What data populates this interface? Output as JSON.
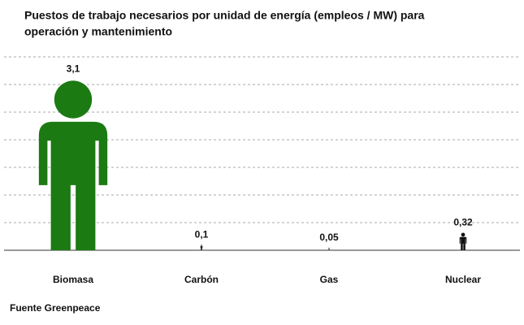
{
  "chart_data": {
    "type": "pictograph",
    "title": [
      "Puestos de trabajo necesarios por unidad de energía (empleos / MW) para",
      "operación y mantenimiento"
    ],
    "categories": [
      "Biomasa",
      "Carbón",
      "Gas",
      "Nuclear"
    ],
    "values": [
      3.1,
      0.1,
      0.05,
      0.32
    ],
    "value_labels": [
      "3,1",
      "0,1",
      "0,05",
      "0,32"
    ],
    "colors": [
      "#1b7a12",
      "#111111",
      "#111111",
      "#111111"
    ],
    "ylim": [
      0,
      3.5
    ],
    "yticks": [
      0,
      0.5,
      1,
      1.5,
      2,
      2.5,
      3,
      3.5
    ],
    "grid": true,
    "source": "Fuente Greenpeace"
  }
}
